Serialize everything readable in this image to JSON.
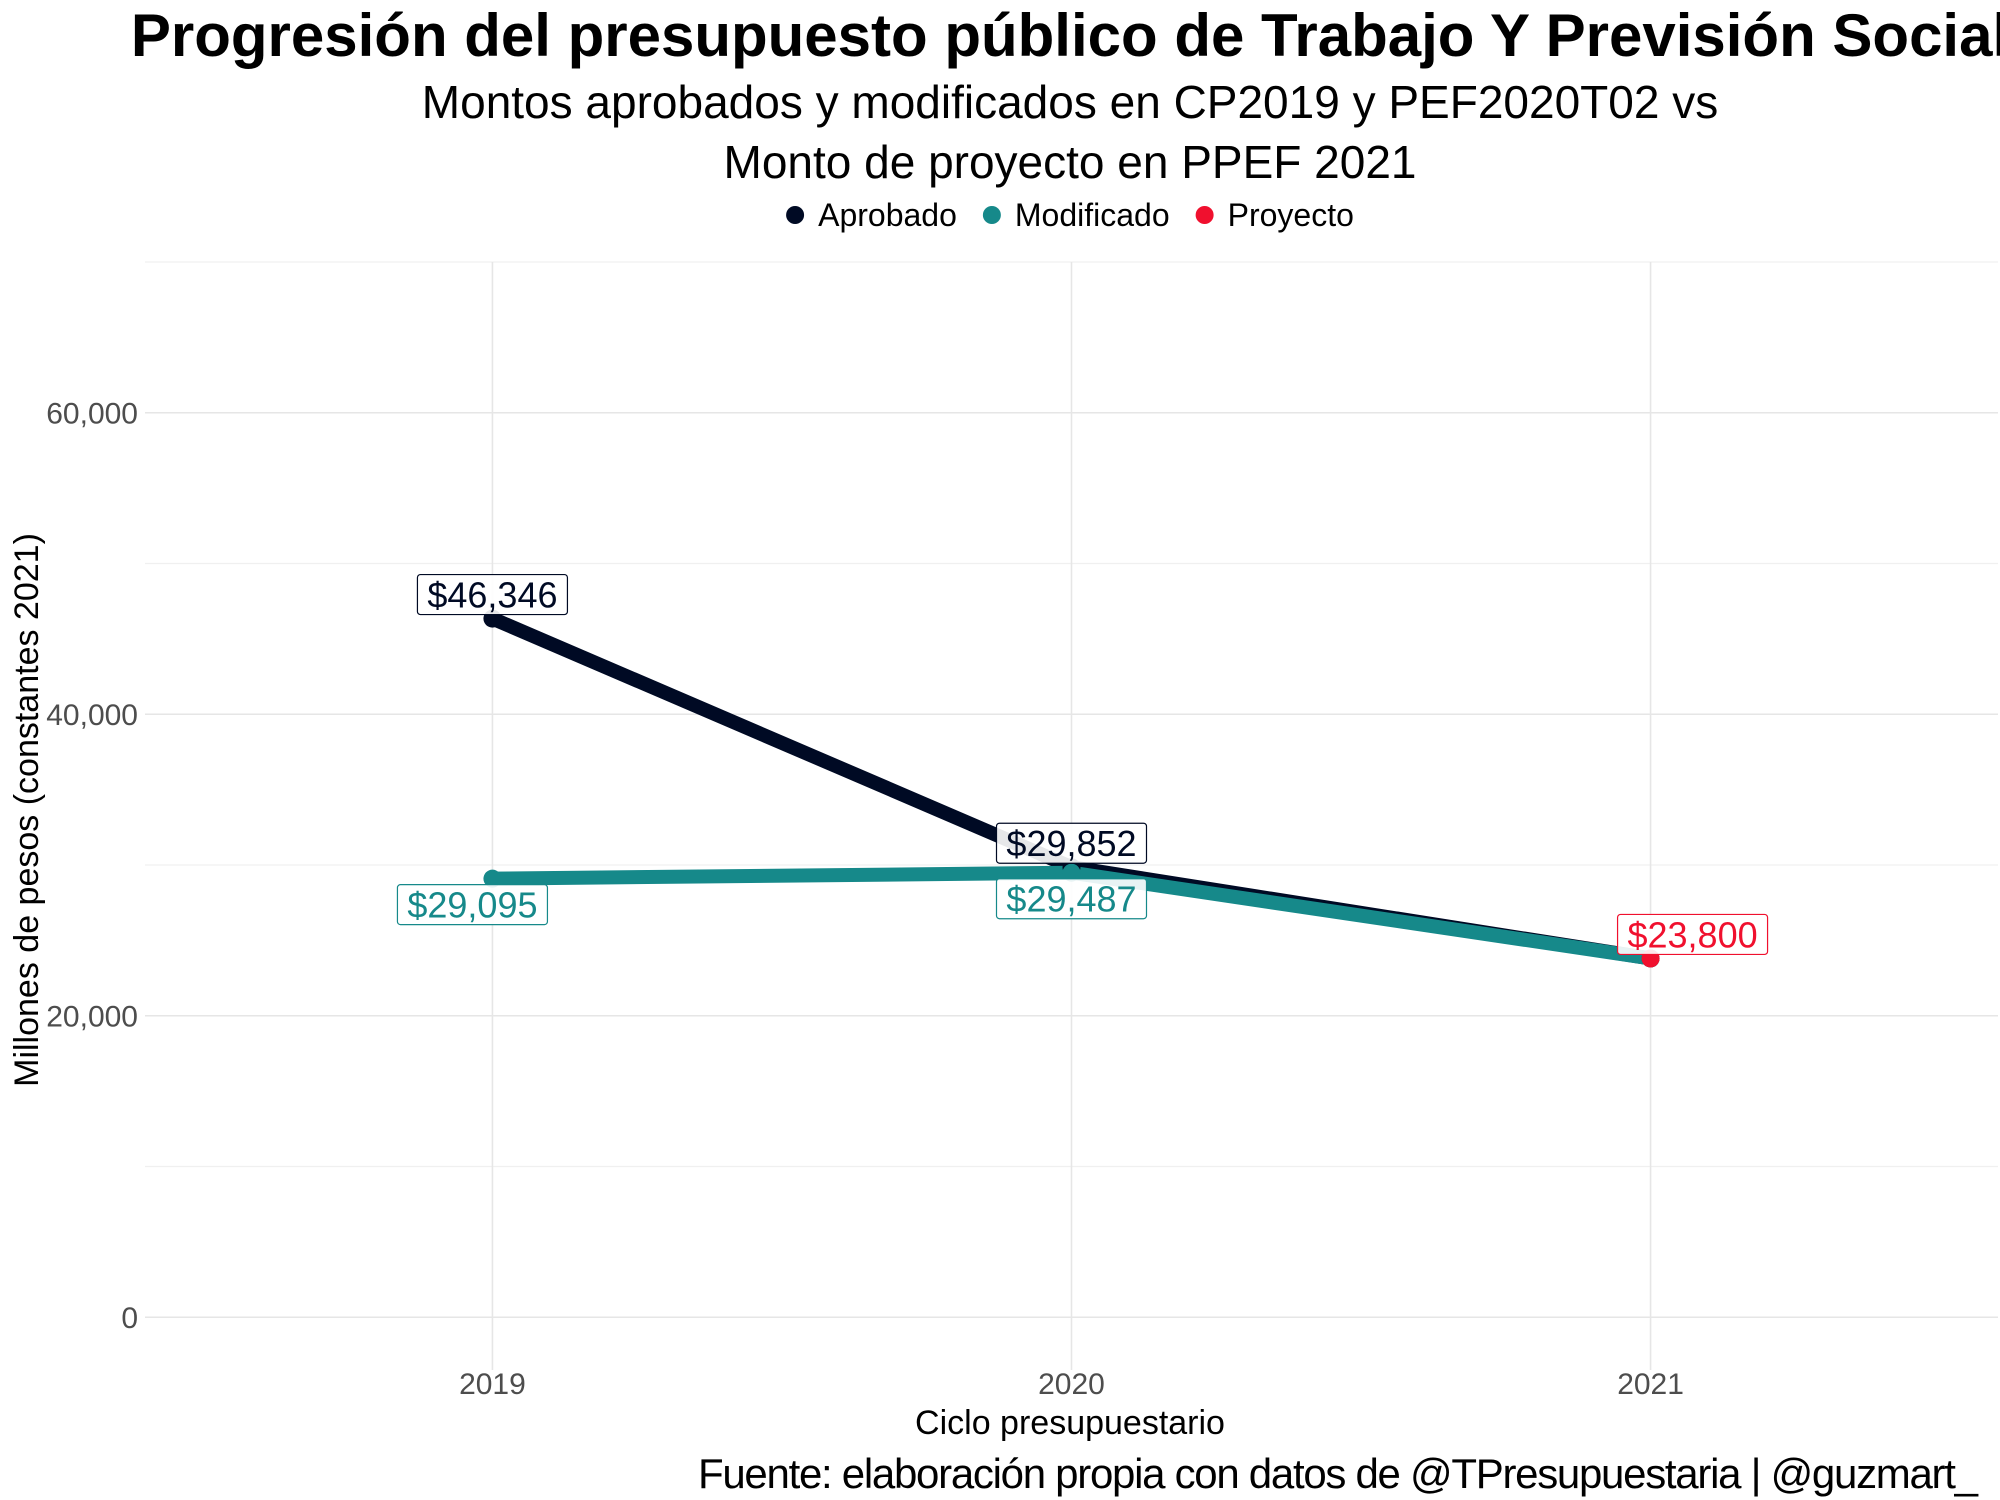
{
  "colors": {
    "aprobado": "#000a24",
    "modificado": "#16898a",
    "proyecto": "#f0102e"
  },
  "chart_data": {
    "type": "line",
    "title": "Progresión del presupuesto público de Trabajo Y Previsión Social",
    "subtitle_lines": [
      "Montos aprobados y modificados en CP2019 y PEF2020T02 vs",
      "Monto de proyecto en PPEF 2021"
    ],
    "xlabel": "Ciclo presupuestario",
    "ylabel": "Millones de pesos (constantes 2021)",
    "caption": "Fuente: elaboración propia con datos de @TPresupuestaria | @guzmart_",
    "x": [
      2019,
      2020,
      2021
    ],
    "x_tick_labels": [
      "2019",
      "2020",
      "2021"
    ],
    "y_ticks": [
      0,
      20000,
      40000,
      60000
    ],
    "y_tick_labels": [
      "0",
      "20,000",
      "40,000",
      "60,000"
    ],
    "xlim": [
      2018.4,
      2021.6
    ],
    "ylim": [
      -3500,
      70000
    ],
    "grid": true,
    "legend_position": "top",
    "legend": [
      "Aprobado",
      "Modificado",
      "Proyecto"
    ],
    "series": [
      {
        "name": "Aprobado",
        "points": [
          [
            2019,
            46346
          ],
          [
            2020,
            29852
          ],
          [
            2021,
            23800
          ]
        ],
        "labels": [
          {
            "x": 2019,
            "y": 46346,
            "text": "$46,346"
          },
          {
            "x": 2020,
            "y": 29852,
            "text": "$29,852"
          }
        ]
      },
      {
        "name": "Modificado",
        "points": [
          [
            2019,
            29095
          ],
          [
            2020,
            29487
          ],
          [
            2021,
            23800
          ]
        ],
        "labels": [
          {
            "x": 2019,
            "y": 29095,
            "text": "$29,095"
          },
          {
            "x": 2020,
            "y": 29487,
            "text": "$29,487"
          }
        ]
      },
      {
        "name": "Proyecto",
        "points": [
          [
            2021,
            23800
          ]
        ],
        "labels": [
          {
            "x": 2021,
            "y": 23800,
            "text": "$23,800"
          }
        ]
      }
    ]
  }
}
